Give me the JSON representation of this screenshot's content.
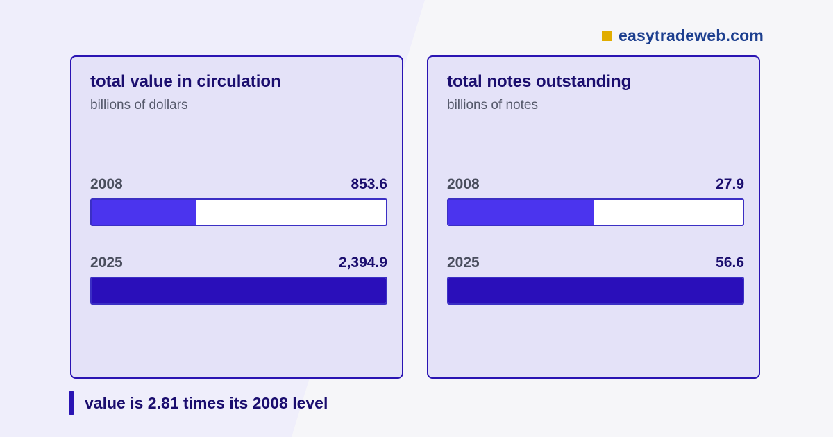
{
  "brand": {
    "name": "easytradeweb.com",
    "mark_color": "#e1ad01"
  },
  "colors": {
    "bar_2008": "#4b34ee",
    "bar_2025": "#2a0fba",
    "card_border": "#2a14b3"
  },
  "cards": [
    {
      "title": "total value in circulation",
      "subtitle": "billions of dollars",
      "rows": [
        {
          "year": "2008",
          "value_label": "853.6"
        },
        {
          "year": "2025",
          "value_label": "2,394.9"
        }
      ]
    },
    {
      "title": "total notes outstanding",
      "subtitle": "billions of notes",
      "rows": [
        {
          "year": "2008",
          "value_label": "27.9"
        },
        {
          "year": "2025",
          "value_label": "56.6"
        }
      ]
    }
  ],
  "footnote": "value is 2.81 times its 2008 level",
  "chart_data": [
    {
      "type": "bar",
      "title": "total value in circulation",
      "subtitle": "billions of dollars",
      "categories": [
        "2008",
        "2025"
      ],
      "values": [
        853.6,
        2394.9
      ],
      "xlim": [
        0,
        2394.9
      ]
    },
    {
      "type": "bar",
      "title": "total notes outstanding",
      "subtitle": "billions of notes",
      "categories": [
        "2008",
        "2025"
      ],
      "values": [
        27.9,
        56.6
      ],
      "xlim": [
        0,
        56.6
      ]
    }
  ]
}
